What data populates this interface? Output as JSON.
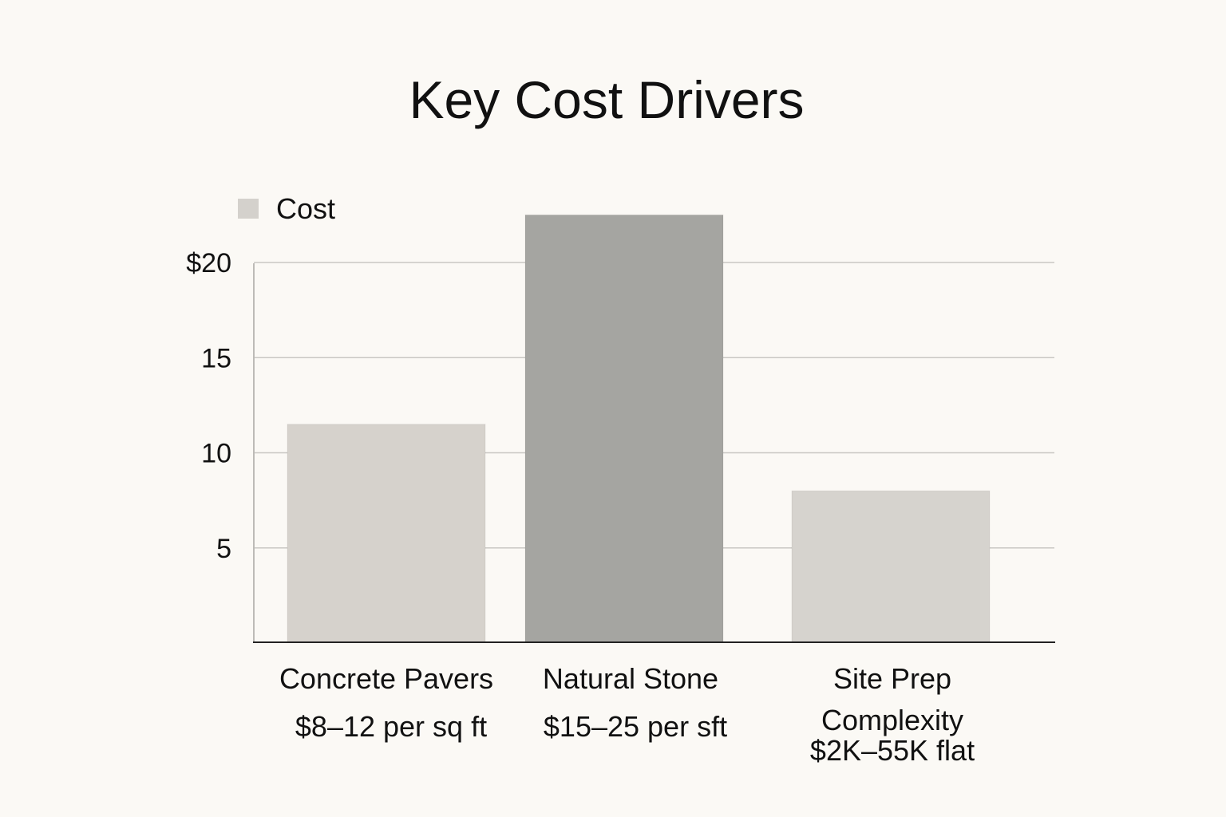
{
  "chart_data": {
    "type": "bar",
    "title": "Key Cost Drivers",
    "xlabel": "",
    "ylabel": "",
    "categories": [
      [
        "Concrete Pavers",
        "$8–12 per sq ft"
      ],
      [
        "Natural Stone",
        "$15–25 per sft"
      ],
      [
        "Site Prep",
        "Complexity",
        "$2K–55K flat"
      ]
    ],
    "series": [
      {
        "name": "Cost",
        "values": [
          11.5,
          22.5,
          8
        ],
        "colors": [
          "#d6d2cc",
          "#a5a5a1",
          "#d6d3ce"
        ]
      }
    ],
    "legend": {
      "label": "Cost",
      "color": "#d4d1cc",
      "placement": "top-left"
    },
    "yticks": [
      5,
      10,
      15,
      20
    ],
    "ytick_labels": [
      "5",
      "10",
      "15",
      "$20"
    ],
    "ylim": [
      0,
      20
    ],
    "grid": true
  }
}
